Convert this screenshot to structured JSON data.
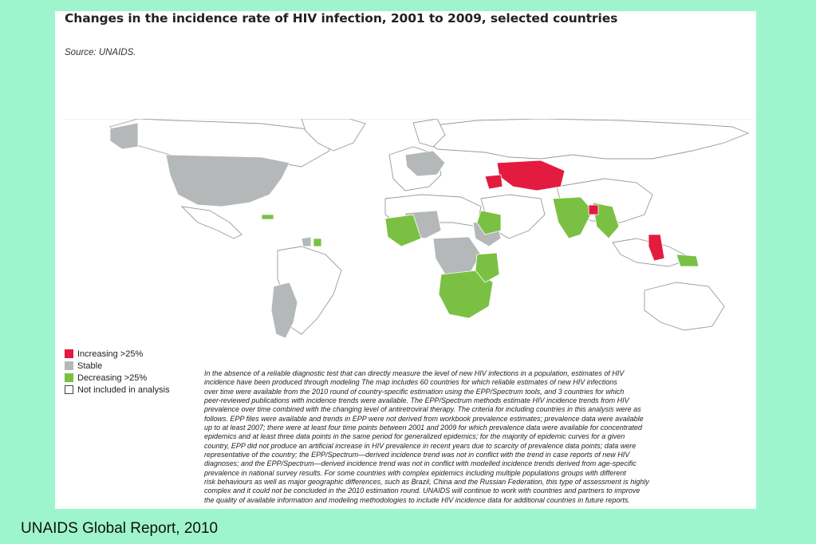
{
  "title": "Changes in the incidence rate of HIV infection, 2001 to 2009, selected countries",
  "source": "Source: UNAIDS.",
  "colors": {
    "increasing": "#e31b3f",
    "stable": "#b5b8b9",
    "decreasing": "#7ac143",
    "not_included": "#ffffff",
    "background": "#9ef5cd"
  },
  "legend": {
    "increasing": "Increasing >25%",
    "stable": "Stable",
    "decreasing": "Decreasing >25%",
    "not_included": "Not included in analysis"
  },
  "footnote": [
    "In the absence of a reliable diagnostic test that can directly measure the level of new HIV infections in a population, estimates of HIV",
    "incidence have been produced through modeling The map includes 60 countries for which reliable estimates of new HIV infections",
    "over time were available from the 2010 round of country-specific estimation using the EPP/Spectrum tools, and 3 countries for which",
    "peer-reviewed publications with incidence trends were available. The EPP/Spectrum methods estimate HIV incidence trends from HIV",
    "prevalence over time combined with the changing level of antiretroviral therapy. The criteria for including countries in this analysis were as",
    "follows. EPP files were available and trends in EPP were not derived from workbook prevalence estimates; prevalence data were available",
    "up to at least 2007; there were at least four time points between 2001 and 2009 for which prevalence data were available for concentrated",
    "epidemics and at least three data points in the same period for generalized epidemics; for the majority of epidemic curves for a given",
    "country, EPP did not produce an artificial increase in HIV prevalence in recent years due to scarcity of prevalence data points; data were",
    "representative of the country; the EPP/Spectrum—derived incidence trend was not in conflict with the trend in case reports of new HIV",
    "diagnoses; and the EPP/Spectrum—derived incidence trend was not in conflict with modelled incidence trends derived from age-specific",
    "prevalence in national survey results. For some countries with complex epidemics including multiple populations groups with different",
    "risk behaviours as well as major geographic differences, such as Brazil, China and the Russian Federation, this type of assessment is highly",
    "complex and it could not be concluded in the 2010 estimation round. UNAIDS will continue to work with countries and partners to improve",
    "the quality of available information and modeling methodologies to include HIV incidence data for additional countries in future reports."
  ],
  "caption": "UNAIDS Global Report, 2010"
}
